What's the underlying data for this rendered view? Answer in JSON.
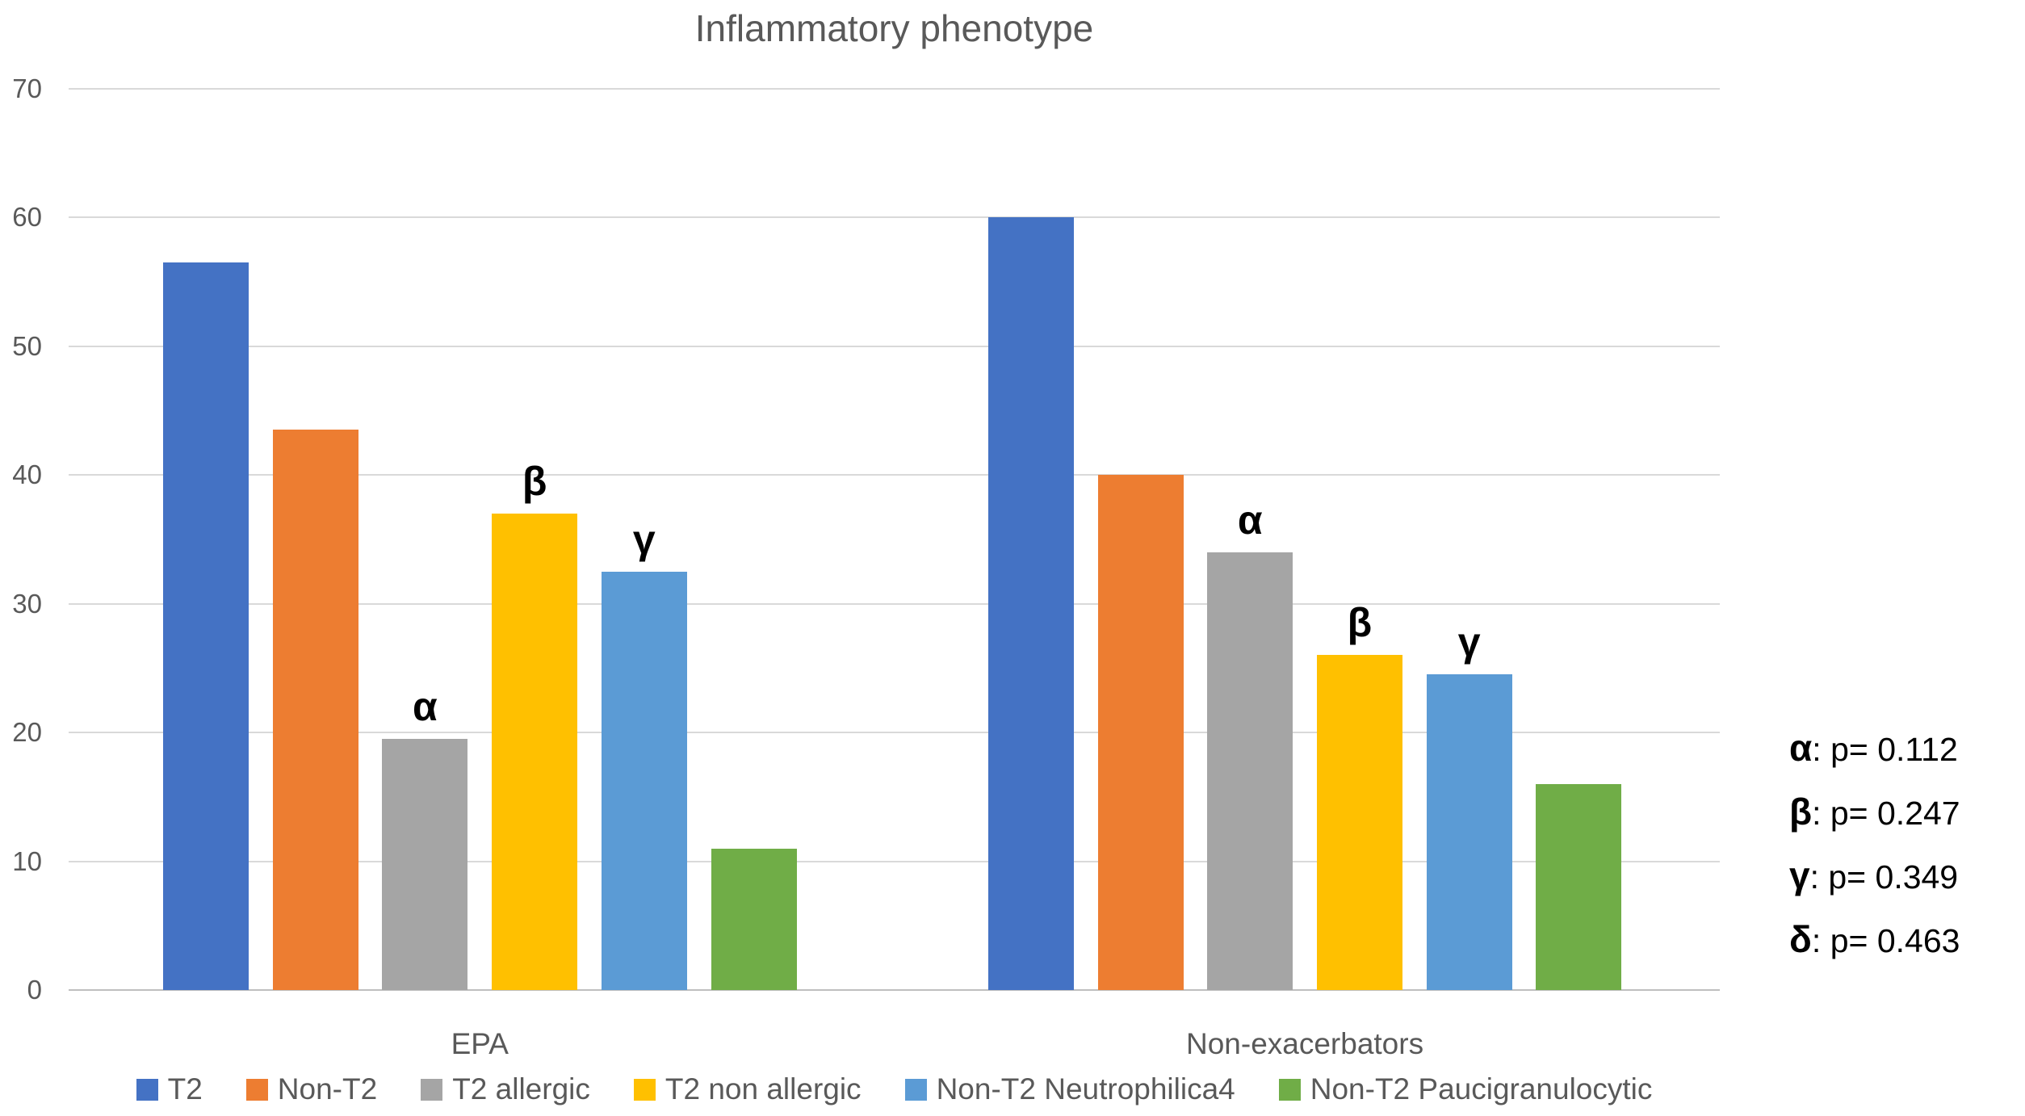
{
  "chart_data": {
    "type": "bar",
    "title": "Inflammatory phenotype",
    "categories": [
      "EPA",
      "Non-exacerbators"
    ],
    "series": [
      {
        "name": "T2",
        "color": "#4472C4",
        "values": [
          56.5,
          60
        ],
        "bar_labels": [
          "",
          ""
        ]
      },
      {
        "name": "Non-T2",
        "color": "#ED7D31",
        "values": [
          43.5,
          40
        ],
        "bar_labels": [
          "",
          ""
        ]
      },
      {
        "name": "T2 allergic",
        "color": "#A5A5A5",
        "values": [
          19.5,
          34
        ],
        "bar_labels": [
          "α",
          "α"
        ]
      },
      {
        "name": "T2 non allergic",
        "color": "#FFC000",
        "values": [
          37,
          26
        ],
        "bar_labels": [
          "β",
          "β"
        ]
      },
      {
        "name": "Non-T2 Neutrophilica4",
        "color": "#5B9BD5",
        "values": [
          32.5,
          24.5
        ],
        "bar_labels": [
          "γ",
          "γ"
        ]
      },
      {
        "name": "Non-T2 Paucigranulocytic",
        "color": "#70AD47",
        "values": [
          11,
          16
        ],
        "bar_labels": [
          "",
          ""
        ]
      }
    ],
    "ylim": [
      0,
      70
    ],
    "yticks": [
      0,
      10,
      20,
      30,
      40,
      50,
      60,
      70
    ],
    "grid": true,
    "legend_position": "bottom"
  },
  "annotations": [
    {
      "symbol": "α",
      "text": ": p= 0.112"
    },
    {
      "symbol": "β",
      "text": ": p= 0.247"
    },
    {
      "symbol": "γ",
      "text": ": p= 0.349"
    },
    {
      "symbol": "δ",
      "text": ": p= 0.463"
    }
  ],
  "colors": {
    "gridline": "#D9D9D9",
    "axis_line": "#BFBFBF",
    "title_text": "#595959",
    "axis_text": "#595959",
    "annotation_text": "#000000"
  }
}
